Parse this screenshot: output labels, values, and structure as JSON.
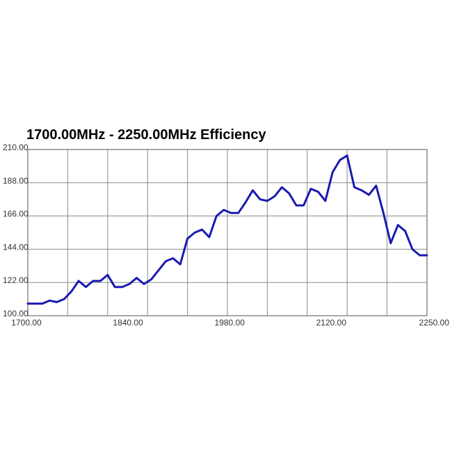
{
  "chart_data": {
    "type": "line",
    "title": "1700.00MHz - 2250.00MHz Efficiency",
    "xlabel": "",
    "ylabel": "",
    "xlim": [
      1700,
      2250
    ],
    "ylim": [
      100,
      210
    ],
    "x_ticks": [
      1700,
      1840,
      1980,
      2120,
      2250
    ],
    "x_tick_labels": [
      "1700.00",
      "1840.00",
      "1980.00",
      "2120.00",
      "2250.00"
    ],
    "y_ticks": [
      100,
      122,
      144,
      166,
      188,
      210
    ],
    "y_tick_labels": [
      "100.00",
      "122.00",
      "144.00",
      "166.00",
      "188.00",
      "210.00"
    ],
    "x_grid_count": 10,
    "grid": true,
    "line_color": "#1a1ab0",
    "series": [
      {
        "x": [
          1700,
          1710,
          1720,
          1730,
          1740,
          1750,
          1760,
          1770,
          1780,
          1790,
          1800,
          1810,
          1820,
          1830,
          1840,
          1850,
          1860,
          1870,
          1880,
          1890,
          1900,
          1910,
          1920,
          1930,
          1940,
          1950,
          1960,
          1970,
          1980,
          1990,
          2000,
          2010,
          2020,
          2030,
          2040,
          2050,
          2060,
          2070,
          2080,
          2090,
          2100,
          2110,
          2120,
          2130,
          2140,
          2150,
          2160,
          2170,
          2180,
          2190,
          2200,
          2210,
          2220,
          2230,
          2240,
          2250
        ],
        "y": [
          108,
          108,
          108,
          110,
          109,
          111,
          116,
          123,
          119,
          123,
          123,
          127,
          119,
          119,
          121,
          125,
          121,
          124,
          130,
          136,
          138,
          134,
          151,
          155,
          157,
          152,
          166,
          170,
          168,
          168,
          175,
          183,
          177,
          176,
          179,
          185,
          181,
          173,
          173,
          184,
          182,
          176,
          195,
          203,
          206,
          185,
          183,
          180,
          186,
          168,
          148,
          160,
          156,
          144,
          140,
          140
        ]
      }
    ]
  }
}
